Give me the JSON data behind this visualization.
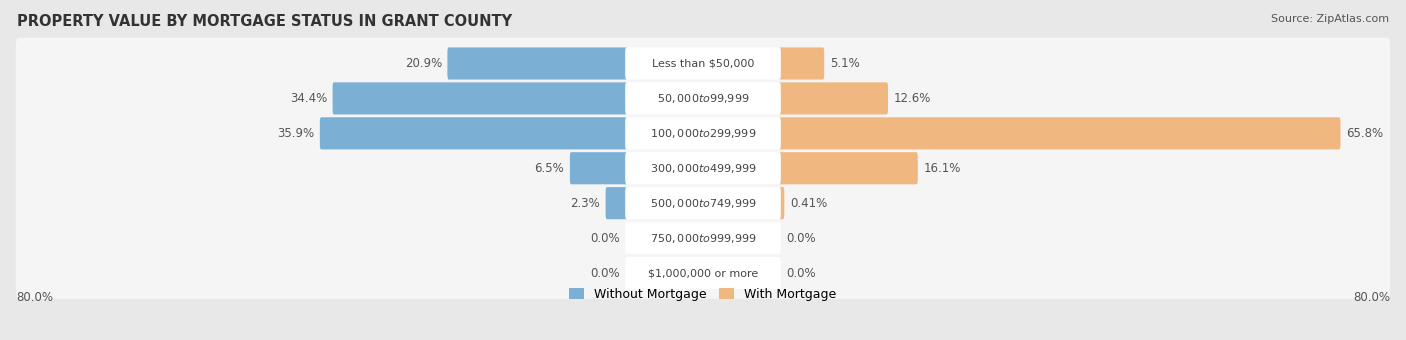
{
  "title": "PROPERTY VALUE BY MORTGAGE STATUS IN GRANT COUNTY",
  "source": "Source: ZipAtlas.com",
  "categories": [
    "Less than $50,000",
    "$50,000 to $99,999",
    "$100,000 to $299,999",
    "$300,000 to $499,999",
    "$500,000 to $749,999",
    "$750,000 to $999,999",
    "$1,000,000 or more"
  ],
  "without_mortgage": [
    20.9,
    34.4,
    35.9,
    6.5,
    2.3,
    0.0,
    0.0
  ],
  "with_mortgage": [
    5.1,
    12.6,
    65.8,
    16.1,
    0.41,
    0.0,
    0.0
  ],
  "without_mortgage_labels": [
    "20.9%",
    "34.4%",
    "35.9%",
    "6.5%",
    "2.3%",
    "0.0%",
    "0.0%"
  ],
  "with_mortgage_labels": [
    "5.1%",
    "12.6%",
    "65.8%",
    "16.1%",
    "0.41%",
    "0.0%",
    "0.0%"
  ],
  "color_without": "#7bafd4",
  "color_with": "#f0b880",
  "color_without_light": "#b8d4ea",
  "color_with_light": "#f5d3a8",
  "axis_limit": 80.0,
  "axis_label_left": "80.0%",
  "axis_label_right": "80.0%",
  "background_color": "#e8e8e8",
  "row_bg_color": "#f5f5f5",
  "title_fontsize": 10.5,
  "label_fontsize": 8.5,
  "category_fontsize": 8.0,
  "legend_fontsize": 9,
  "source_fontsize": 8
}
